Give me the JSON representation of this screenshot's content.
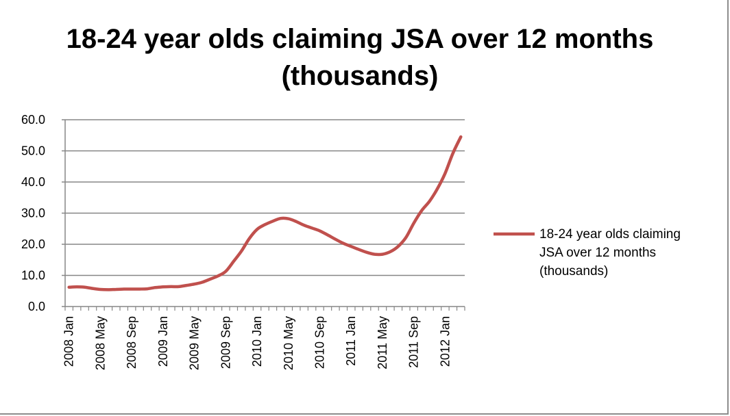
{
  "chart_data": {
    "type": "line",
    "title": "18-24 year olds claiming JSA over 12 months (thousands)",
    "xlabel": "",
    "ylabel": "",
    "ylim": [
      0,
      60
    ],
    "yticks": [
      "0.0",
      "10.0",
      "20.0",
      "30.0",
      "40.0",
      "50.0",
      "60.0"
    ],
    "grid": true,
    "legend_position": "right",
    "xtick_labels": [
      "2008 Jan",
      "2008 May",
      "2008 Sep",
      "2009 Jan",
      "2009 May",
      "2009 Sep",
      "2010 Jan",
      "2010 May",
      "2010 Sep",
      "2011 Jan",
      "2011 May",
      "2011 Sep",
      "2012 Jan"
    ],
    "categories": [
      "2008 Jan",
      "2008 Feb",
      "2008 Mar",
      "2008 Apr",
      "2008 May",
      "2008 Jun",
      "2008 Jul",
      "2008 Aug",
      "2008 Sep",
      "2008 Oct",
      "2008 Nov",
      "2008 Dec",
      "2009 Jan",
      "2009 Feb",
      "2009 Mar",
      "2009 Apr",
      "2009 May",
      "2009 Jun",
      "2009 Jul",
      "2009 Aug",
      "2009 Sep",
      "2009 Oct",
      "2009 Nov",
      "2009 Dec",
      "2010 Jan",
      "2010 Feb",
      "2010 Mar",
      "2010 Apr",
      "2010 May",
      "2010 Jun",
      "2010 Jul",
      "2010 Aug",
      "2010 Sep",
      "2010 Oct",
      "2010 Nov",
      "2010 Dec",
      "2011 Jan",
      "2011 Feb",
      "2011 Mar",
      "2011 Apr",
      "2011 May",
      "2011 Jun",
      "2011 Jul",
      "2011 Aug",
      "2011 Sep",
      "2011 Oct",
      "2011 Nov",
      "2011 Dec",
      "2012 Jan",
      "2012 Feb",
      "2012 Mar"
    ],
    "series": [
      {
        "name": "18-24 year olds claiming JSA over 12 months (thousands)",
        "color": "#c0504d",
        "values": [
          6.2,
          6.3,
          6.2,
          5.8,
          5.5,
          5.4,
          5.5,
          5.6,
          5.6,
          5.6,
          5.7,
          6.1,
          6.3,
          6.4,
          6.4,
          6.8,
          7.2,
          7.8,
          8.8,
          9.8,
          11.3,
          14.5,
          17.8,
          21.8,
          24.8,
          26.3,
          27.4,
          28.3,
          28.2,
          27.3,
          26.1,
          25.2,
          24.3,
          23.0,
          21.6,
          20.3,
          19.3,
          18.3,
          17.4,
          16.8,
          16.8,
          17.6,
          19.3,
          22.2,
          26.8,
          30.8,
          33.8,
          37.8,
          42.8,
          49.3,
          54.5
        ]
      }
    ]
  }
}
